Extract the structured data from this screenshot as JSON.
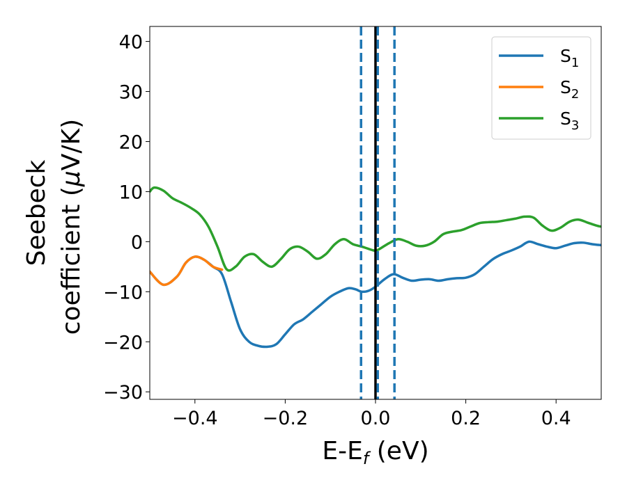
{
  "chart_data": {
    "type": "line",
    "xlabel": {
      "base": "E-E",
      "sub": "f",
      "rest": " (eV)"
    },
    "ylabel": {
      "line1": "Seebeck",
      "line2": "coefficient  (",
      "mu": "μ",
      "unit": "V/K)"
    },
    "xlim": [
      -0.5,
      0.5
    ],
    "ylim": [
      -31.5,
      43
    ],
    "xticks": [
      -0.4,
      -0.2,
      0.0,
      0.2,
      0.4
    ],
    "xtick_labels": [
      "−0.4",
      "−0.2",
      "0.0",
      "0.2",
      "0.4"
    ],
    "yticks": [
      -30,
      -20,
      -10,
      0,
      10,
      20,
      30,
      40
    ],
    "ytick_labels": [
      "−30",
      "−20",
      "−10",
      "0",
      "10",
      "20",
      "30",
      "40"
    ],
    "legend_position": "top-right",
    "grid": false,
    "vlines": [
      {
        "x": -0.032,
        "style": "dashed",
        "color": "#1f77b4"
      },
      {
        "x": 0.0,
        "style": "solid",
        "color": "#000000"
      },
      {
        "x": 0.005,
        "style": "dashed",
        "color": "#1f77b4"
      },
      {
        "x": 0.042,
        "style": "dashed",
        "color": "#1f77b4"
      }
    ],
    "series": [
      {
        "name": "S",
        "sub": "1",
        "color": "#1f77b4",
        "x": [
          -0.5,
          -0.47,
          -0.44,
          -0.42,
          -0.4,
          -0.38,
          -0.36,
          -0.34,
          -0.32,
          -0.3,
          -0.28,
          -0.26,
          -0.24,
          -0.22,
          -0.2,
          -0.18,
          -0.16,
          -0.14,
          -0.12,
          -0.1,
          -0.08,
          -0.06,
          -0.045,
          -0.03,
          -0.015,
          0.0,
          0.02,
          0.04,
          0.06,
          0.08,
          0.1,
          0.12,
          0.14,
          0.16,
          0.18,
          0.2,
          0.22,
          0.24,
          0.26,
          0.28,
          0.3,
          0.32,
          0.34,
          0.36,
          0.38,
          0.4,
          0.42,
          0.44,
          0.46,
          0.48,
          0.5
        ],
        "y": [
          -6.0,
          -8.6,
          -7.0,
          -4.2,
          -3.0,
          -3.6,
          -5.0,
          -6.5,
          -12.0,
          -17.5,
          -20.0,
          -20.8,
          -21.0,
          -20.5,
          -18.5,
          -16.5,
          -15.5,
          -14.0,
          -12.5,
          -11.0,
          -10.0,
          -9.3,
          -9.5,
          -10.0,
          -9.8,
          -9.0,
          -7.5,
          -6.5,
          -7.2,
          -7.8,
          -7.6,
          -7.5,
          -7.8,
          -7.5,
          -7.3,
          -7.2,
          -6.5,
          -5.0,
          -3.5,
          -2.5,
          -1.8,
          -1.0,
          0.0,
          -0.5,
          -1.0,
          -1.3,
          -0.8,
          -0.3,
          -0.2,
          -0.5,
          -0.7
        ]
      },
      {
        "name": "S",
        "sub": "2",
        "color": "#ff7f0e",
        "x": [
          -0.5,
          -0.47,
          -0.44,
          -0.42,
          -0.4,
          -0.38,
          -0.36,
          -0.34
        ],
        "y": [
          -6.0,
          -8.6,
          -7.0,
          -4.2,
          -3.0,
          -3.6,
          -5.0,
          -5.6
        ]
      },
      {
        "name": "S",
        "sub": "3",
        "color": "#2ca02c",
        "x": [
          -0.5,
          -0.49,
          -0.47,
          -0.45,
          -0.43,
          -0.41,
          -0.39,
          -0.37,
          -0.35,
          -0.33,
          -0.31,
          -0.29,
          -0.27,
          -0.25,
          -0.23,
          -0.21,
          -0.19,
          -0.17,
          -0.15,
          -0.13,
          -0.11,
          -0.09,
          -0.07,
          -0.05,
          -0.03,
          -0.01,
          0.0,
          0.01,
          0.03,
          0.05,
          0.07,
          0.09,
          0.11,
          0.13,
          0.15,
          0.17,
          0.19,
          0.21,
          0.23,
          0.25,
          0.27,
          0.29,
          0.31,
          0.33,
          0.35,
          0.37,
          0.39,
          0.41,
          0.43,
          0.45,
          0.47,
          0.49,
          0.5
        ],
        "y": [
          10.0,
          10.8,
          10.2,
          8.7,
          7.8,
          6.8,
          5.5,
          3.0,
          -1.0,
          -5.5,
          -5.0,
          -3.0,
          -2.5,
          -4.0,
          -5.0,
          -3.5,
          -1.5,
          -1.0,
          -2.0,
          -3.4,
          -2.5,
          -0.5,
          0.5,
          -0.5,
          -1.0,
          -1.6,
          -1.8,
          -1.4,
          -0.3,
          0.5,
          0.0,
          -0.8,
          -0.8,
          0.0,
          1.5,
          2.0,
          2.3,
          3.0,
          3.7,
          3.9,
          4.0,
          4.3,
          4.6,
          5.0,
          4.8,
          3.2,
          2.2,
          2.8,
          4.0,
          4.4,
          3.8,
          3.2,
          3.0
        ]
      }
    ]
  }
}
